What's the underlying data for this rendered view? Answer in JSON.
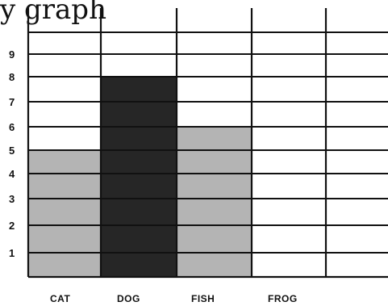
{
  "page": {
    "title_fragment": "y graph"
  },
  "chart_data": {
    "type": "bar",
    "title": "",
    "xlabel": "",
    "ylabel": "",
    "categories": [
      "CAT",
      "DOG",
      "FISH",
      "FROG"
    ],
    "values": [
      5,
      8,
      6,
      0
    ],
    "bar_colors": [
      "#b4b4b4",
      "#262626",
      "#b4b4b4",
      "#ffffff"
    ],
    "ylim": [
      0,
      10
    ],
    "yticks": [
      "1",
      "2",
      "3",
      "4",
      "5",
      "6",
      "7",
      "8",
      "9"
    ],
    "grid": true,
    "legend": "none"
  }
}
